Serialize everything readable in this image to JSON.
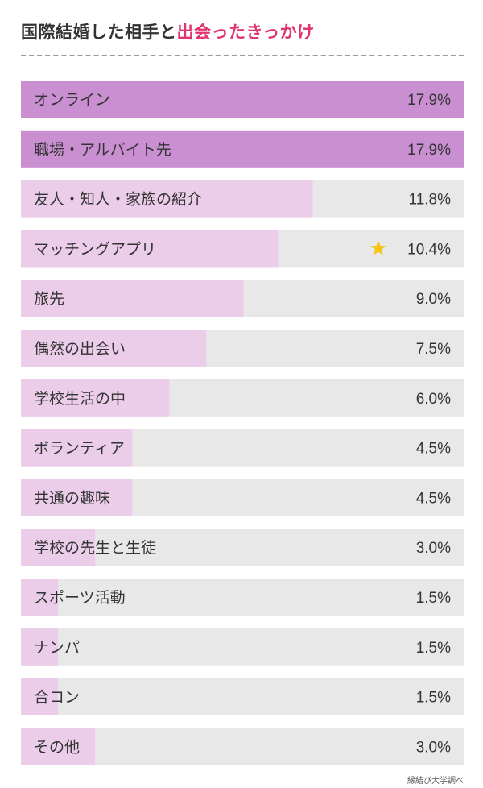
{
  "title": {
    "part1": "国際結婚した相手と",
    "part2": "出会ったきっかけ"
  },
  "source": "縁結び大学調べ",
  "colors": {
    "title_accent": "#e0336f",
    "bar_highlight": "#c98fd0",
    "bar_normal": "#ebcdea",
    "track": "#e8e8e8",
    "star": "#f5c518"
  },
  "chart_data": {
    "type": "bar",
    "orientation": "horizontal",
    "unit": "%",
    "xlim": [
      0,
      17.9
    ],
    "categories": [
      "オンライン",
      "職場・アルバイト先",
      "友人・知人・家族の紹介",
      "マッチングアプリ",
      "旅先",
      "偶然の出会い",
      "学校生活の中",
      "ボランティア",
      "共通の趣味",
      "学校の先生と生徒",
      "スポーツ活動",
      "ナンパ",
      "合コン",
      "その他"
    ],
    "values": [
      17.9,
      17.9,
      11.8,
      10.4,
      9.0,
      7.5,
      6.0,
      4.5,
      4.5,
      3.0,
      1.5,
      1.5,
      1.5,
      3.0
    ],
    "value_labels": [
      "17.9%",
      "17.9%",
      "11.8%",
      "10.4%",
      "9.0%",
      "7.5%",
      "6.0%",
      "4.5%",
      "4.5%",
      "3.0%",
      "1.5%",
      "1.5%",
      "1.5%",
      "3.0%"
    ],
    "highlighted": [
      0,
      1
    ],
    "starred": [
      3
    ],
    "star_icon": "star-icon"
  }
}
